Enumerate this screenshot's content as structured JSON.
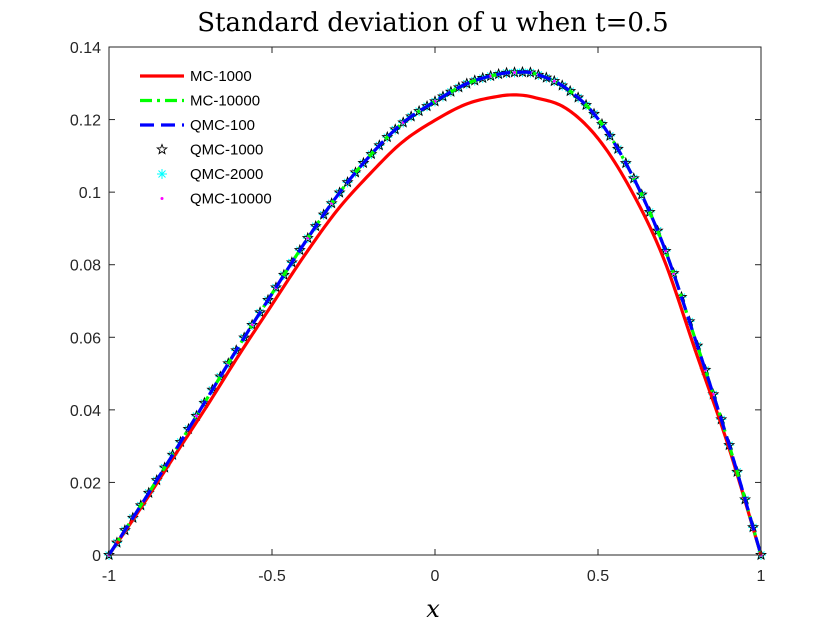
{
  "chart_data": {
    "type": "line",
    "title": "Standard deviation of u when t=0.5",
    "xlabel": "x",
    "ylabel": "",
    "xlim": [
      -1,
      1
    ],
    "ylim": [
      0,
      0.14
    ],
    "grid": false,
    "legend_position": "top-left",
    "x_ticks": [
      -1,
      -0.5,
      0,
      0.5,
      1
    ],
    "x_tick_labels": [
      "-1",
      "-0.5",
      "0",
      "0.5",
      "1"
    ],
    "y_ticks": [
      0,
      0.02,
      0.04,
      0.06,
      0.08,
      0.1,
      0.12,
      0.14
    ],
    "y_tick_labels": [
      "0",
      "0.02",
      "0.04",
      "0.06",
      "0.08",
      "0.1",
      "0.12",
      "0.14"
    ],
    "x": [
      -1,
      -0.9,
      -0.8,
      -0.7,
      -0.6,
      -0.5,
      -0.4,
      -0.3,
      -0.2,
      -0.1,
      0,
      0.1,
      0.2,
      0.25,
      0.3,
      0.4,
      0.5,
      0.6,
      0.7,
      0.8,
      0.9,
      1
    ],
    "series": [
      {
        "name": "MC-1000",
        "color": "#ff0000",
        "style": "solid",
        "values": [
          0,
          0.0133,
          0.0272,
          0.041,
          0.0553,
          0.069,
          0.0826,
          0.095,
          0.105,
          0.1138,
          0.1198,
          0.1244,
          0.1265,
          0.1268,
          0.1262,
          0.1232,
          0.1148,
          0.1008,
          0.082,
          0.056,
          0.03,
          0
        ]
      },
      {
        "name": "MC-10000",
        "color": "#00ff00",
        "style": "dashdot",
        "values": [
          0,
          0.014,
          0.0283,
          0.043,
          0.0578,
          0.072,
          0.086,
          0.099,
          0.11,
          0.119,
          0.125,
          0.13,
          0.1326,
          0.133,
          0.1328,
          0.1288,
          0.1202,
          0.1055,
          0.0855,
          0.059,
          0.031,
          0
        ]
      },
      {
        "name": "QMC-100",
        "color": "#0000ff",
        "style": "dashed",
        "values": [
          0,
          0.014,
          0.0283,
          0.043,
          0.0578,
          0.072,
          0.086,
          0.099,
          0.11,
          0.119,
          0.125,
          0.13,
          0.1326,
          0.133,
          0.1328,
          0.1288,
          0.1202,
          0.1055,
          0.0855,
          0.059,
          0.031,
          0
        ]
      },
      {
        "name": "QMC-1000",
        "color": "#000000",
        "style": "marker-star",
        "values": [
          0,
          0.014,
          0.0283,
          0.043,
          0.0578,
          0.072,
          0.086,
          0.099,
          0.11,
          0.119,
          0.125,
          0.13,
          0.1326,
          0.133,
          0.1328,
          0.1288,
          0.1202,
          0.1055,
          0.0855,
          0.059,
          0.031,
          0
        ]
      },
      {
        "name": "QMC-2000",
        "color": "#00ffff",
        "style": "marker-asterisk",
        "values": [
          0,
          0.014,
          0.0283,
          0.043,
          0.0578,
          0.072,
          0.086,
          0.099,
          0.11,
          0.119,
          0.125,
          0.13,
          0.1326,
          0.133,
          0.1328,
          0.1288,
          0.1202,
          0.1055,
          0.0855,
          0.059,
          0.031,
          0
        ]
      },
      {
        "name": "QMC-10000",
        "color": "#ff00ff",
        "style": "marker-dot",
        "values": [
          0,
          0.014,
          0.0283,
          0.043,
          0.0578,
          0.072,
          0.086,
          0.099,
          0.11,
          0.119,
          0.125,
          0.13,
          0.1326,
          0.133,
          0.1328,
          0.1288,
          0.1202,
          0.1055,
          0.0855,
          0.059,
          0.031,
          0
        ]
      }
    ]
  }
}
